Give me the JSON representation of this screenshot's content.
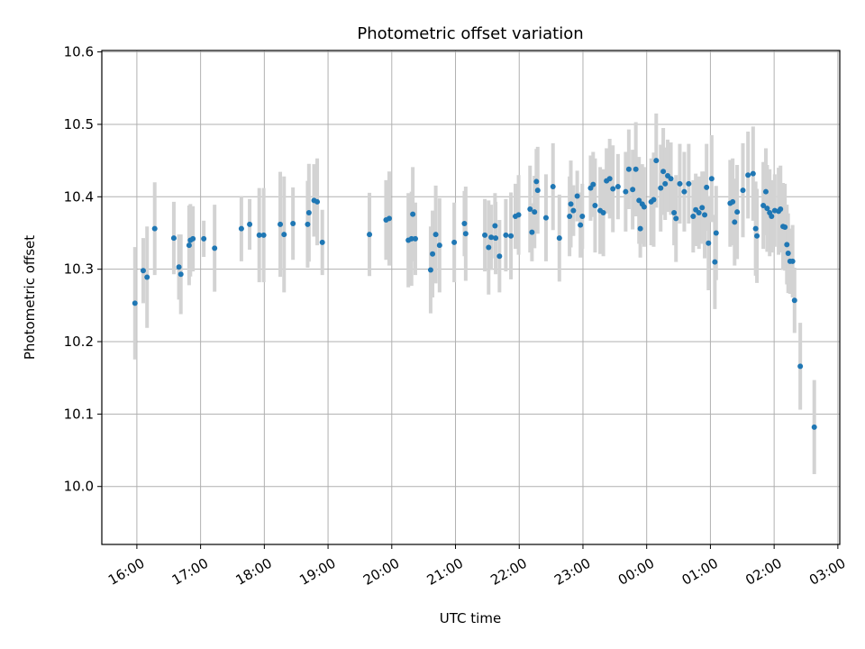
{
  "chart_data": {
    "type": "scatter",
    "title": "Photometric offset variation",
    "xlabel": "UTC time",
    "ylabel": "Photometric offset",
    "x_unit": "hours (UTC)",
    "x_ticks": [
      {
        "t": 16,
        "label": "16:00"
      },
      {
        "t": 17,
        "label": "17:00"
      },
      {
        "t": 18,
        "label": "18:00"
      },
      {
        "t": 19,
        "label": "19:00"
      },
      {
        "t": 20,
        "label": "20:00"
      },
      {
        "t": 21,
        "label": "21:00"
      },
      {
        "t": 22,
        "label": "22:00"
      },
      {
        "t": 23,
        "label": "23:00"
      },
      {
        "t": 24,
        "label": "00:00"
      },
      {
        "t": 25,
        "label": "01:00"
      },
      {
        "t": 26,
        "label": "02:00"
      },
      {
        "t": 27,
        "label": "03:00"
      }
    ],
    "y_ticks": [
      {
        "v": 10.0,
        "label": "10.0"
      },
      {
        "v": 10.1,
        "label": "10.1"
      },
      {
        "v": 10.2,
        "label": "10.2"
      },
      {
        "v": 10.3,
        "label": "10.3"
      },
      {
        "v": 10.4,
        "label": "10.4"
      },
      {
        "v": 10.5,
        "label": "10.5"
      },
      {
        "v": 10.6,
        "label": "10.6"
      }
    ],
    "xlim": [
      15.45,
      27.03
    ],
    "ylim": [
      9.92,
      10.602
    ],
    "grid": true,
    "marker_color": "#1f77b4",
    "errorbar_color": "#d3d3d3",
    "series": [
      {
        "points": [
          [
            15.97,
            10.253,
            0.155
          ],
          [
            16.1,
            10.298,
            0.09
          ],
          [
            16.16,
            10.289,
            0.14
          ],
          [
            16.28,
            10.356,
            0.128
          ],
          [
            16.58,
            10.343,
            0.1
          ],
          [
            16.66,
            10.303,
            0.09
          ],
          [
            16.69,
            10.293,
            0.11
          ],
          [
            16.82,
            10.333,
            0.11
          ],
          [
            16.84,
            10.34,
            0.1
          ],
          [
            16.88,
            10.342,
            0.09
          ],
          [
            17.05,
            10.342,
            0.05
          ],
          [
            17.22,
            10.329,
            0.12
          ],
          [
            17.64,
            10.356,
            0.09
          ],
          [
            17.77,
            10.362,
            0.07
          ],
          [
            17.92,
            10.347,
            0.13
          ],
          [
            17.99,
            10.347,
            0.13
          ],
          [
            18.25,
            10.362,
            0.145
          ],
          [
            18.31,
            10.348,
            0.16
          ],
          [
            18.45,
            10.363,
            0.1
          ],
          [
            18.68,
            10.362,
            0.12
          ],
          [
            18.7,
            10.378,
            0.135
          ],
          [
            18.78,
            10.395,
            0.1
          ],
          [
            18.83,
            10.393,
            0.12
          ],
          [
            18.91,
            10.337,
            0.09
          ],
          [
            19.65,
            10.348,
            0.115
          ],
          [
            19.91,
            10.368,
            0.11
          ],
          [
            19.96,
            10.37,
            0.13
          ],
          [
            20.26,
            10.34,
            0.13
          ],
          [
            20.31,
            10.342,
            0.13
          ],
          [
            20.33,
            10.376,
            0.13
          ],
          [
            20.37,
            10.342,
            0.1
          ],
          [
            20.61,
            10.299,
            0.12
          ],
          [
            20.64,
            10.321,
            0.12
          ],
          [
            20.69,
            10.348,
            0.135
          ],
          [
            20.75,
            10.333,
            0.13
          ],
          [
            20.98,
            10.337,
            0.11
          ],
          [
            21.14,
            10.363,
            0.09
          ],
          [
            21.16,
            10.349,
            0.13
          ],
          [
            21.46,
            10.347,
            0.1
          ],
          [
            21.52,
            10.33,
            0.13
          ],
          [
            21.56,
            10.344,
            0.09
          ],
          [
            21.62,
            10.36,
            0.09
          ],
          [
            21.63,
            10.343,
            0.1
          ],
          [
            21.69,
            10.318,
            0.1
          ],
          [
            21.79,
            10.347,
            0.1
          ],
          [
            21.87,
            10.346,
            0.12
          ],
          [
            21.94,
            10.373,
            0.09
          ],
          [
            21.99,
            10.375,
            0.11
          ],
          [
            22.17,
            10.383,
            0.12
          ],
          [
            22.2,
            10.351,
            0.08
          ],
          [
            22.24,
            10.379,
            0.1
          ],
          [
            22.27,
            10.421,
            0.09
          ],
          [
            22.29,
            10.409,
            0.12
          ],
          [
            22.42,
            10.371,
            0.12
          ],
          [
            22.53,
            10.414,
            0.12
          ],
          [
            22.63,
            10.343,
            0.12
          ],
          [
            22.79,
            10.373,
            0.11
          ],
          [
            22.81,
            10.39,
            0.12
          ],
          [
            22.85,
            10.381,
            0.07
          ],
          [
            22.91,
            10.401,
            0.07
          ],
          [
            22.96,
            10.361,
            0.09
          ],
          [
            22.99,
            10.373,
            0.09
          ],
          [
            23.12,
            10.412,
            0.09
          ],
          [
            23.16,
            10.417,
            0.09
          ],
          [
            23.19,
            10.388,
            0.13
          ],
          [
            23.27,
            10.381,
            0.12
          ],
          [
            23.32,
            10.378,
            0.12
          ],
          [
            23.37,
            10.422,
            0.09
          ],
          [
            23.42,
            10.425,
            0.11
          ],
          [
            23.47,
            10.411,
            0.12
          ],
          [
            23.55,
            10.414,
            0.09
          ],
          [
            23.67,
            10.407,
            0.11
          ],
          [
            23.72,
            10.438,
            0.11
          ],
          [
            23.78,
            10.41,
            0.11
          ],
          [
            23.83,
            10.438,
            0.13
          ],
          [
            23.88,
            10.395,
            0.12
          ],
          [
            23.9,
            10.356,
            0.08
          ],
          [
            23.93,
            10.39,
            0.11
          ],
          [
            23.96,
            10.386,
            0.11
          ],
          [
            24.07,
            10.393,
            0.12
          ],
          [
            24.11,
            10.396,
            0.13
          ],
          [
            24.15,
            10.45,
            0.13
          ],
          [
            24.22,
            10.412,
            0.12
          ],
          [
            24.26,
            10.435,
            0.12
          ],
          [
            24.29,
            10.418,
            0.1
          ],
          [
            24.33,
            10.429,
            0.1
          ],
          [
            24.38,
            10.425,
            0.1
          ],
          [
            24.43,
            10.378,
            0.09
          ],
          [
            24.46,
            10.37,
            0.12
          ],
          [
            24.52,
            10.418,
            0.11
          ],
          [
            24.59,
            10.407,
            0.11
          ],
          [
            24.66,
            10.418,
            0.11
          ],
          [
            24.73,
            10.373,
            0.1
          ],
          [
            24.77,
            10.382,
            0.1
          ],
          [
            24.82,
            10.378,
            0.1
          ],
          [
            24.87,
            10.385,
            0.1
          ],
          [
            24.91,
            10.375,
            0.12
          ],
          [
            24.94,
            10.413,
            0.12
          ],
          [
            24.97,
            10.336,
            0.13
          ],
          [
            25.02,
            10.425,
            0.12
          ],
          [
            25.07,
            10.31,
            0.13
          ],
          [
            25.09,
            10.35,
            0.13
          ],
          [
            25.31,
            10.391,
            0.12
          ],
          [
            25.35,
            10.393,
            0.12
          ],
          [
            25.38,
            10.365,
            0.12
          ],
          [
            25.42,
            10.379,
            0.13
          ],
          [
            25.51,
            10.409,
            0.13
          ],
          [
            25.59,
            10.43,
            0.12
          ],
          [
            25.67,
            10.432,
            0.13
          ],
          [
            25.71,
            10.356,
            0.13
          ],
          [
            25.73,
            10.346,
            0.13
          ],
          [
            25.83,
            10.388,
            0.12
          ],
          [
            25.87,
            10.407,
            0.12
          ],
          [
            25.89,
            10.384,
            0.12
          ],
          [
            25.93,
            10.378,
            0.12
          ],
          [
            25.96,
            10.373,
            0.1
          ],
          [
            26.01,
            10.381,
            0.1
          ],
          [
            26.07,
            10.38,
            0.12
          ],
          [
            26.1,
            10.383,
            0.12
          ],
          [
            26.14,
            10.359,
            0.12
          ],
          [
            26.17,
            10.358,
            0.12
          ],
          [
            26.2,
            10.334,
            0.11
          ],
          [
            26.22,
            10.322,
            0.11
          ],
          [
            26.25,
            10.311,
            0.09
          ],
          [
            26.29,
            10.311,
            0.1
          ],
          [
            26.32,
            10.257,
            0.09
          ],
          [
            26.41,
            10.166,
            0.12
          ],
          [
            26.63,
            10.082,
            0.13
          ]
        ]
      }
    ]
  }
}
